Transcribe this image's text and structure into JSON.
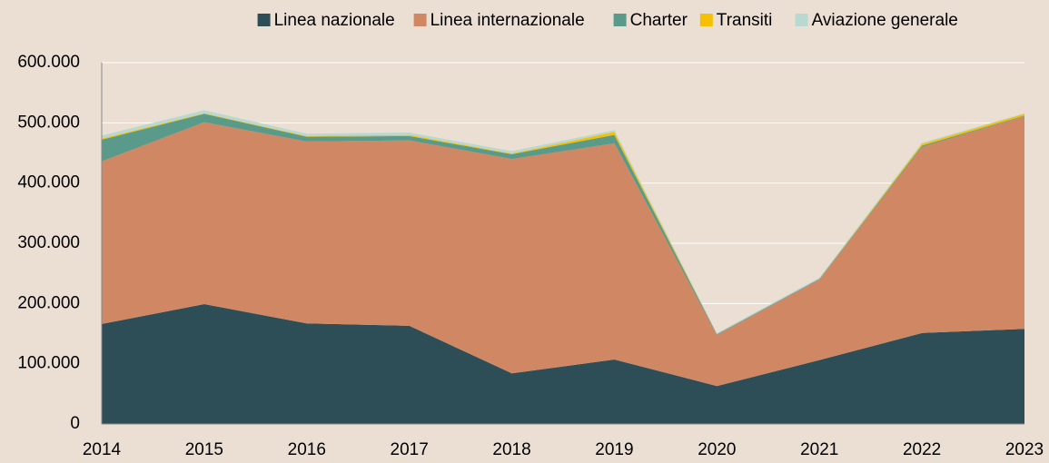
{
  "chart_data": {
    "type": "stacked_area",
    "x": [
      2014,
      2015,
      2016,
      2017,
      2018,
      2019,
      2020,
      2021,
      2022,
      2023
    ],
    "xlim": [
      2014,
      2023
    ],
    "ylim": [
      0,
      600000
    ],
    "yticks": [
      0,
      {
        "value": 100000,
        "label": "100.000"
      },
      {
        "value": 200000,
        "label": "200.000"
      },
      {
        "value": 300000,
        "label": "300.000"
      },
      {
        "value": 400000,
        "label": "400.000"
      },
      {
        "value": 500000,
        "label": "500.000"
      },
      {
        "value": 600000,
        "label": "600.000"
      }
    ],
    "grid": true,
    "legend": "top",
    "series": [
      {
        "name": "Linea nazionale",
        "color": "#2d4d57",
        "values": [
          166000,
          199000,
          167000,
          163000,
          84000,
          107000,
          63000,
          106000,
          151000,
          158000
        ]
      },
      {
        "name": "Linea internazionale",
        "color": "#d08864",
        "values": [
          270000,
          302000,
          302000,
          308000,
          356000,
          359000,
          85000,
          134000,
          309000,
          353000
        ]
      },
      {
        "name": "Charter",
        "color": "#5a9a8a",
        "values": [
          36000,
          14000,
          8000,
          7000,
          8000,
          14000,
          1000,
          1000,
          2000,
          1000
        ]
      },
      {
        "name": "Transiti",
        "color": "#f5c000",
        "values": [
          2000,
          1000,
          1000,
          2000,
          1000,
          5000,
          0,
          0,
          3000,
          3000
        ]
      },
      {
        "name": "Aviazione generale",
        "color": "#b8d8d2",
        "values": [
          5000,
          5000,
          4000,
          4000,
          4000,
          3000,
          2000,
          2000,
          2000,
          1000
        ]
      }
    ]
  }
}
